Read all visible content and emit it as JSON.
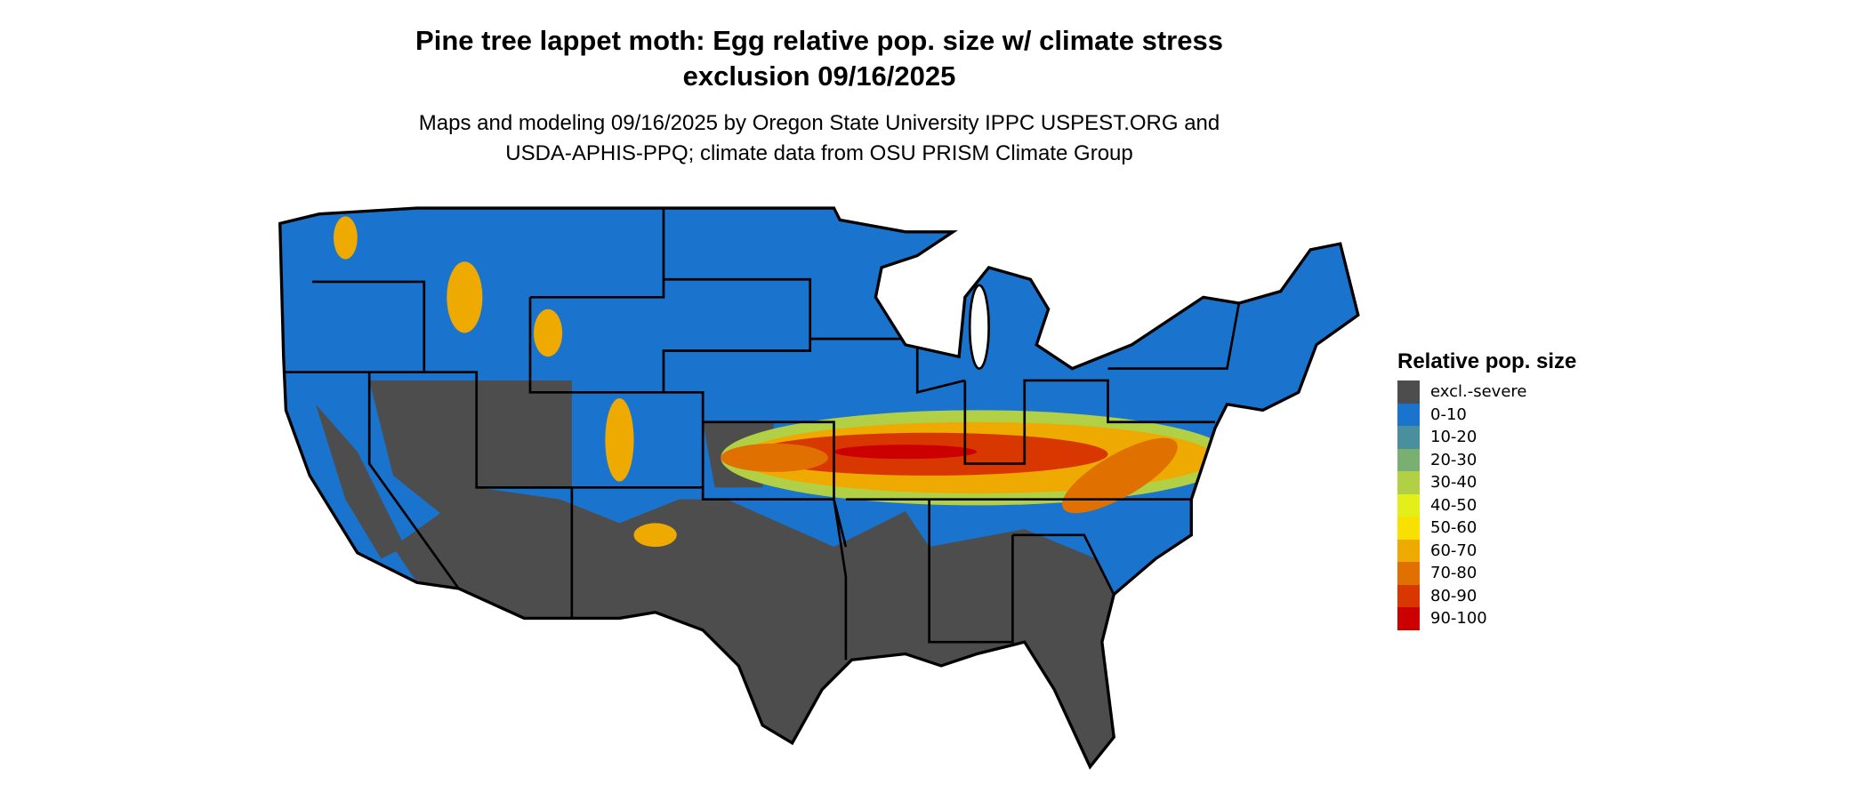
{
  "title": {
    "line1": "Pine tree lappet moth: Egg relative pop. size w/ climate stress",
    "line2": "exclusion 09/16/2025"
  },
  "subtitle": {
    "line1": "Maps and modeling 09/16/2025 by Oregon State University IPPC USPEST.ORG and",
    "line2": "USDA-APHIS-PPQ; climate data from OSU PRISM Climate Group"
  },
  "legend": {
    "title": "Relative pop. size",
    "items": [
      {
        "label": "excl.-severe",
        "color": "#4d4d4d"
      },
      {
        "label": "0-10",
        "color": "#1a73cc"
      },
      {
        "label": "10-20",
        "color": "#4a8f9e"
      },
      {
        "label": "20-30",
        "color": "#7aaf72"
      },
      {
        "label": "30-40",
        "color": "#b2d046"
      },
      {
        "label": "40-50",
        "color": "#e2ef18"
      },
      {
        "label": "50-60",
        "color": "#f8e000"
      },
      {
        "label": "60-70",
        "color": "#eeaa00"
      },
      {
        "label": "70-80",
        "color": "#e07000"
      },
      {
        "label": "80-90",
        "color": "#d83800"
      },
      {
        "label": "90-100",
        "color": "#cc0000"
      }
    ]
  }
}
